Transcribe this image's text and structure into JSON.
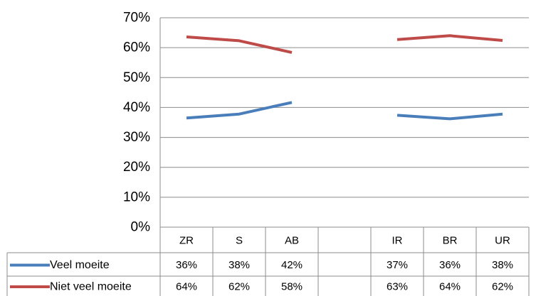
{
  "chart_data": {
    "type": "line",
    "categories": [
      "ZR",
      "S",
      "AB",
      "",
      "IR",
      "BR",
      "UR"
    ],
    "y_ticks": [
      "0%",
      "10%",
      "20%",
      "30%",
      "40%",
      "50%",
      "60%",
      "70%"
    ],
    "ylim": [
      0,
      70
    ],
    "y_unit": "%",
    "grid": true,
    "legend_placement": "data-table-left",
    "series": [
      {
        "name": "Veel moeite",
        "color": "#4a7ebb",
        "values": [
          36.5,
          37.8,
          41.7,
          null,
          37.4,
          36.2,
          37.8
        ],
        "labels": [
          "36%",
          "38%",
          "42%",
          "",
          "37%",
          "36%",
          "38%"
        ]
      },
      {
        "name": "Niet veel moeite",
        "color": "#be4b48",
        "values": [
          63.6,
          62.3,
          58.4,
          null,
          62.7,
          64.0,
          62.4
        ],
        "labels": [
          "64%",
          "62%",
          "58%",
          "",
          "63%",
          "64%",
          "62%"
        ]
      }
    ]
  }
}
